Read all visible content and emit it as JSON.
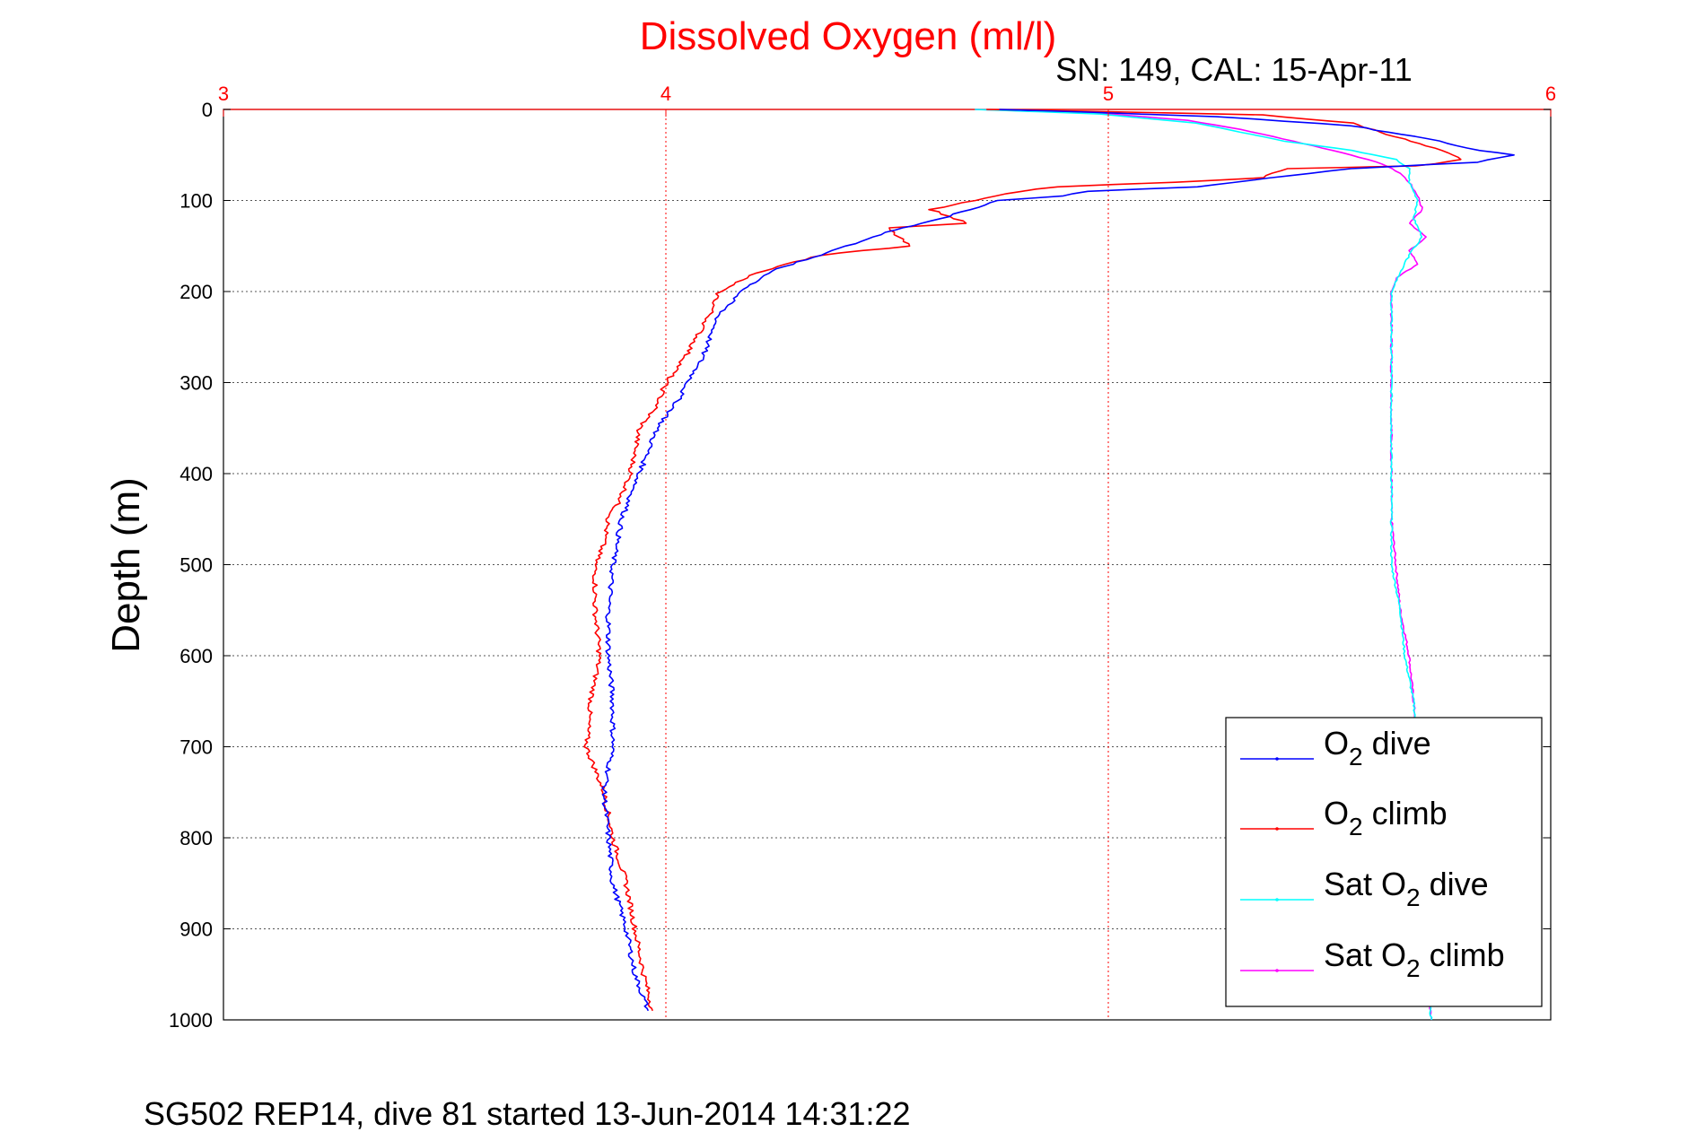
{
  "chart_data": {
    "type": "line",
    "title": "Dissolved Oxygen (ml/l)",
    "subtitle": "SN: 149, CAL: 15-Apr-11",
    "ylabel": "Depth (m)",
    "footer": "SG502 REP14, dive 81 started 13-Jun-2014 14:31:22",
    "xlim": [
      3,
      6
    ],
    "ylim": [
      0,
      1000
    ],
    "y_reversed": true,
    "x_axis_position": "top",
    "x_ticks": [
      "3",
      "4",
      "5",
      "6"
    ],
    "y_ticks": [
      "0",
      "100",
      "200",
      "300",
      "400",
      "500",
      "600",
      "700",
      "800",
      "900",
      "1000"
    ],
    "grid": true,
    "legend_position": "bottom-right",
    "colors": {
      "title": "#ff0000",
      "x_axis": "#ff0000"
    },
    "series": [
      {
        "name": "O2 dive",
        "color": "#0000ff",
        "points": [
          [
            4.75,
            0
          ],
          [
            4.95,
            3
          ],
          [
            5.25,
            8
          ],
          [
            5.55,
            18
          ],
          [
            5.72,
            32
          ],
          [
            5.84,
            45
          ],
          [
            5.92,
            50
          ],
          [
            5.83,
            58
          ],
          [
            5.55,
            65
          ],
          [
            5.32,
            78
          ],
          [
            5.2,
            85
          ],
          [
            4.95,
            90
          ],
          [
            4.9,
            95
          ],
          [
            4.75,
            100
          ],
          [
            4.62,
            120
          ],
          [
            4.5,
            135
          ],
          [
            4.38,
            155
          ],
          [
            4.25,
            175
          ],
          [
            4.17,
            200
          ],
          [
            4.12,
            225
          ],
          [
            4.1,
            250
          ],
          [
            4.08,
            275
          ],
          [
            4.05,
            300
          ],
          [
            4.02,
            325
          ],
          [
            3.98,
            350
          ],
          [
            3.96,
            375
          ],
          [
            3.94,
            400
          ],
          [
            3.92,
            425
          ],
          [
            3.9,
            450
          ],
          [
            3.89,
            475
          ],
          [
            3.88,
            500
          ],
          [
            3.87,
            550
          ],
          [
            3.87,
            600
          ],
          [
            3.88,
            650
          ],
          [
            3.88,
            700
          ],
          [
            3.86,
            750
          ],
          [
            3.87,
            800
          ],
          [
            3.88,
            850
          ],
          [
            3.91,
            900
          ],
          [
            3.93,
            950
          ],
          [
            3.96,
            990
          ]
        ]
      },
      {
        "name": "O2 climb",
        "color": "#ff0000",
        "points": [
          [
            4.72,
            0
          ],
          [
            4.95,
            2
          ],
          [
            5.35,
            6
          ],
          [
            5.55,
            15
          ],
          [
            5.65,
            30
          ],
          [
            5.75,
            45
          ],
          [
            5.8,
            55
          ],
          [
            5.7,
            62
          ],
          [
            5.4,
            65
          ],
          [
            5.35,
            75
          ],
          [
            5.15,
            80
          ],
          [
            4.88,
            85
          ],
          [
            4.8,
            90
          ],
          [
            4.7,
            100
          ],
          [
            4.6,
            110
          ],
          [
            4.68,
            125
          ],
          [
            4.5,
            130
          ],
          [
            4.55,
            150
          ],
          [
            4.35,
            160
          ],
          [
            4.2,
            180
          ],
          [
            4.12,
            200
          ],
          [
            4.1,
            225
          ],
          [
            4.07,
            250
          ],
          [
            4.04,
            275
          ],
          [
            4.0,
            300
          ],
          [
            3.98,
            325
          ],
          [
            3.94,
            350
          ],
          [
            3.93,
            375
          ],
          [
            3.92,
            400
          ],
          [
            3.9,
            425
          ],
          [
            3.87,
            450
          ],
          [
            3.86,
            475
          ],
          [
            3.84,
            500
          ],
          [
            3.84,
            550
          ],
          [
            3.85,
            600
          ],
          [
            3.83,
            650
          ],
          [
            3.82,
            700
          ],
          [
            3.86,
            750
          ],
          [
            3.88,
            800
          ],
          [
            3.91,
            850
          ],
          [
            3.93,
            900
          ],
          [
            3.95,
            950
          ],
          [
            3.97,
            990
          ]
        ]
      },
      {
        "name": "Sat O2 dive",
        "color": "#00ffff",
        "points": [
          [
            4.7,
            0
          ],
          [
            4.98,
            5
          ],
          [
            5.2,
            15
          ],
          [
            5.3,
            25
          ],
          [
            5.4,
            35
          ],
          [
            5.55,
            45
          ],
          [
            5.65,
            55
          ],
          [
            5.68,
            65
          ],
          [
            5.68,
            80
          ],
          [
            5.7,
            100
          ],
          [
            5.69,
            120
          ],
          [
            5.71,
            140
          ],
          [
            5.68,
            160
          ],
          [
            5.66,
            180
          ],
          [
            5.64,
            200
          ],
          [
            5.64,
            250
          ],
          [
            5.64,
            300
          ],
          [
            5.64,
            350
          ],
          [
            5.64,
            400
          ],
          [
            5.64,
            450
          ],
          [
            5.64,
            500
          ],
          [
            5.66,
            550
          ],
          [
            5.67,
            600
          ],
          [
            5.69,
            650
          ],
          [
            5.7,
            700
          ],
          [
            5.71,
            750
          ],
          [
            5.71,
            800
          ],
          [
            5.71,
            850
          ],
          [
            5.72,
            900
          ],
          [
            5.72,
            950
          ],
          [
            5.73,
            1000
          ]
        ]
      },
      {
        "name": "Sat O2 climb",
        "color": "#ff00ff",
        "points": [
          [
            4.7,
            0
          ],
          [
            4.98,
            4
          ],
          [
            5.18,
            12
          ],
          [
            5.3,
            22
          ],
          [
            5.42,
            35
          ],
          [
            5.55,
            50
          ],
          [
            5.62,
            60
          ],
          [
            5.66,
            70
          ],
          [
            5.68,
            80
          ],
          [
            5.7,
            95
          ],
          [
            5.71,
            110
          ],
          [
            5.68,
            125
          ],
          [
            5.72,
            140
          ],
          [
            5.68,
            155
          ],
          [
            5.7,
            170
          ],
          [
            5.65,
            185
          ],
          [
            5.64,
            200
          ],
          [
            5.64,
            250
          ],
          [
            5.64,
            300
          ],
          [
            5.64,
            350
          ],
          [
            5.64,
            400
          ],
          [
            5.64,
            450
          ],
          [
            5.65,
            500
          ],
          [
            5.66,
            550
          ],
          [
            5.68,
            600
          ],
          [
            5.69,
            650
          ],
          [
            5.7,
            700
          ],
          [
            5.71,
            750
          ],
          [
            5.71,
            800
          ],
          [
            5.71,
            850
          ],
          [
            5.72,
            900
          ],
          [
            5.72,
            950
          ],
          [
            5.73,
            1000
          ]
        ]
      }
    ],
    "legend": [
      {
        "main": "O",
        "sub": "2",
        "rest": " dive"
      },
      {
        "main": "O",
        "sub": "2",
        "rest": " climb"
      },
      {
        "main": "Sat O",
        "sub": "2",
        "rest": " dive"
      },
      {
        "main": "Sat O",
        "sub": "2",
        "rest": " climb"
      }
    ]
  }
}
